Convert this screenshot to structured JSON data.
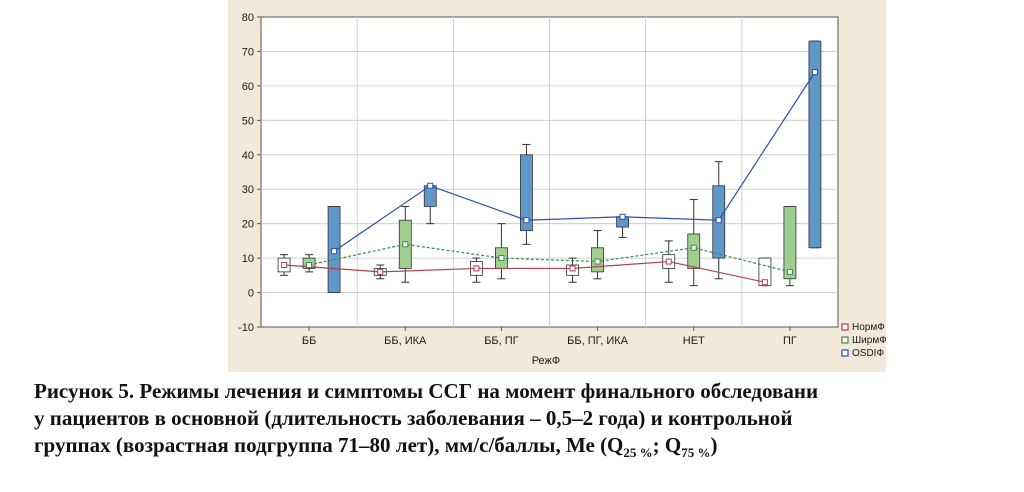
{
  "chart_data": {
    "type": "box",
    "xlabel": "РежФ",
    "ylabel": "",
    "ylim": [
      -10,
      80
    ],
    "yticks": [
      -10,
      0,
      10,
      20,
      30,
      40,
      50,
      60,
      70,
      80
    ],
    "categories": [
      "ББ",
      "ББ, ИКА",
      "ББ, ПГ",
      "ББ, ПГ, ИКА",
      "НЕТ",
      "ПГ"
    ],
    "grid": true,
    "legend_position": "bottom-right",
    "series": [
      {
        "name": "НормФ",
        "color": "#b0404f",
        "fill": "#ffffff",
        "line_style": "solid",
        "median": [
          8,
          6,
          7,
          7,
          9,
          3
        ],
        "q1": [
          6,
          5,
          5,
          5,
          7,
          2
        ],
        "q3": [
          10,
          7,
          9,
          8,
          11,
          10
        ],
        "whisker_low": [
          5,
          4,
          3,
          3,
          3,
          2
        ],
        "whisker_high": [
          11,
          8,
          10,
          10,
          15,
          10
        ]
      },
      {
        "name": "ШирмФ",
        "color": "#3c8a4c",
        "fill": "#9fcf8f",
        "line_style": "dashed",
        "median": [
          8,
          14,
          10,
          9,
          13,
          6
        ],
        "q1": [
          7,
          7,
          7,
          6,
          7,
          4
        ],
        "q3": [
          10,
          21,
          13,
          13,
          17,
          25
        ],
        "whisker_low": [
          6,
          3,
          4,
          4,
          2,
          2
        ],
        "whisker_high": [
          11,
          25,
          20,
          18,
          27,
          25
        ]
      },
      {
        "name": "OSDIФ",
        "color": "#2d52a8",
        "fill": "#5f98c8",
        "line_style": "solid",
        "median": [
          12,
          31,
          21,
          22,
          21,
          64
        ],
        "q1": [
          0,
          25,
          18,
          19,
          10,
          13
        ],
        "q3": [
          25,
          31,
          40,
          22,
          31,
          73
        ],
        "whisker_low": [
          0,
          20,
          14,
          16,
          4,
          13
        ],
        "whisker_high": [
          25,
          31,
          43,
          22,
          38,
          73
        ]
      }
    ]
  },
  "caption": {
    "line1": "Рисунок 5. Режимы лечения и симптомы ССГ на момент финального обследовани",
    "line2": "у пациентов в основной (длительность заболевания – 0,5–2 года) и контрольной",
    "line3_text": "группах (возрастная подгруппа 71–80 лет), мм/с/баллы, Ме (Q",
    "line3_sub1": "25 %",
    "line3_sep": "; Q",
    "line3_sub2": "75 %",
    "line3_end": ")"
  }
}
